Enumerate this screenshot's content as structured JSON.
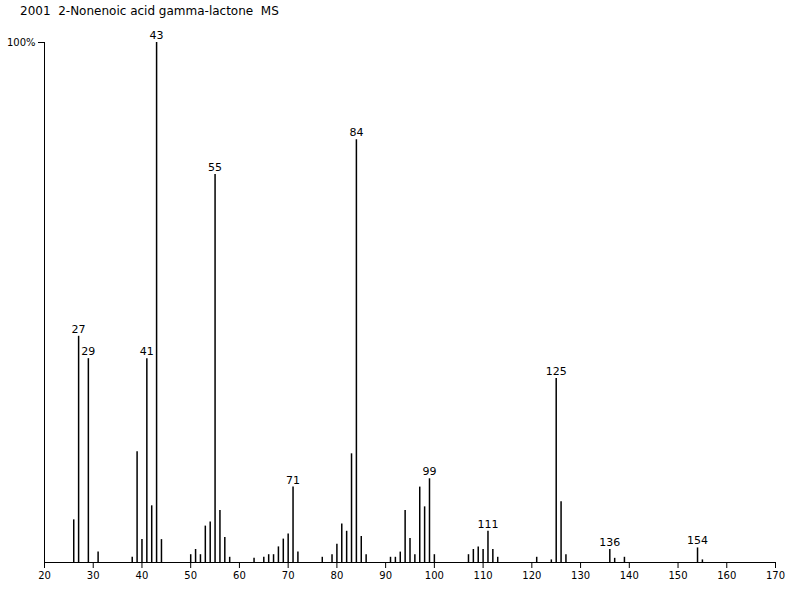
{
  "chart_data": {
    "type": "bar",
    "title": "2001  2-Nonenoic acid gamma-lactone  MS",
    "x": [
      26,
      27,
      29,
      31,
      38,
      39,
      40,
      41,
      42,
      43,
      44,
      50,
      51,
      52,
      53,
      54,
      55,
      56,
      57,
      58,
      63,
      65,
      66,
      67,
      68,
      69,
      70,
      71,
      72,
      77,
      79,
      80,
      81,
      82,
      83,
      84,
      85,
      86,
      91,
      92,
      93,
      94,
      95,
      96,
      97,
      98,
      99,
      100,
      107,
      108,
      109,
      110,
      111,
      112,
      113,
      121,
      124,
      125,
      126,
      127,
      136,
      137,
      139,
      154,
      155
    ],
    "values": [
      8.2,
      43.5,
      39.2,
      2,
      1,
      21.3,
      4.4,
      39.2,
      10.9,
      100,
      4.4,
      1.5,
      2.5,
      1.5,
      7,
      7.8,
      74.6,
      10,
      4.8,
      1,
      0.8,
      1,
      1.5,
      1.5,
      3,
      4.5,
      5.5,
      14.5,
      2,
      1,
      1.5,
      3.5,
      7.4,
      6,
      20.9,
      81.3,
      5,
      1.5,
      1,
      1,
      2,
      10,
      4.6,
      1.5,
      14.5,
      10.7,
      16.1,
      1.5,
      1.5,
      2.5,
      3,
      2.5,
      6,
      2.5,
      1,
      1,
      0.5,
      35.4,
      11.7,
      1.5,
      2.5,
      0.8,
      1,
      2.8,
      0.5
    ],
    "color": "#000000",
    "xlim": [
      20,
      170
    ],
    "xticks": [
      20,
      30,
      40,
      50,
      60,
      70,
      80,
      90,
      100,
      110,
      120,
      130,
      140,
      150,
      160,
      170
    ],
    "ylim": [
      0,
      100
    ],
    "yticks": [
      {
        "value": 100,
        "label": "100%"
      }
    ],
    "annotations": [
      {
        "x": 27,
        "text": "27"
      },
      {
        "x": 29,
        "text": "29"
      },
      {
        "x": 41,
        "text": "41"
      },
      {
        "x": 43,
        "text": "43"
      },
      {
        "x": 55,
        "text": "55"
      },
      {
        "x": 71,
        "text": "71"
      },
      {
        "x": 84,
        "text": "84"
      },
      {
        "x": 99,
        "text": "99"
      },
      {
        "x": 111,
        "text": "111"
      },
      {
        "x": 125,
        "text": "125"
      },
      {
        "x": 136,
        "text": "136"
      },
      {
        "x": 154,
        "text": "154"
      }
    ]
  }
}
